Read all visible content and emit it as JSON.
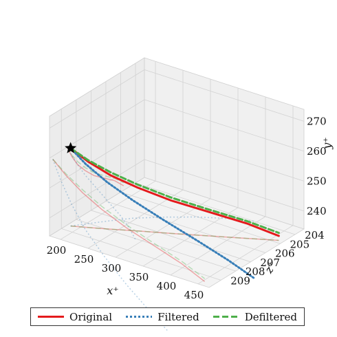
{
  "chart_data": {
    "type": "line",
    "projection": "3d",
    "axes": {
      "x": {
        "label": "x⁺",
        "ticks": [
          "200",
          "250",
          "300",
          "350",
          "400",
          "450"
        ],
        "range": [
          180,
          470
        ]
      },
      "z": {
        "label": "z⁺",
        "ticks": [
          "204",
          "205",
          "206",
          "207",
          "208",
          "209"
        ],
        "range": [
          203.4,
          209.8
        ]
      },
      "y": {
        "label": "y⁺",
        "ticks": [
          "240",
          "250",
          "260",
          "270"
        ],
        "range": [
          234,
          274
        ]
      }
    },
    "grid": true,
    "legend_position": "bottom",
    "start_marker": {
      "symbol": "star",
      "x": 186,
      "z": 208.6,
      "y": 260
    },
    "series": [
      {
        "name": "Original",
        "color": "#e41a1c",
        "style": "solid",
        "points": [
          [
            186,
            208.6,
            260
          ],
          [
            210,
            208.3,
            256
          ],
          [
            240,
            207.9,
            252
          ],
          [
            275,
            207.4,
            248.5
          ],
          [
            320,
            206.8,
            245
          ],
          [
            370,
            206.1,
            242
          ],
          [
            420,
            205.4,
            239
          ],
          [
            462,
            204.8,
            235.5
          ]
        ]
      },
      {
        "name": "Filtered",
        "color": "#377eb8",
        "style": "dotted",
        "points": [
          [
            186,
            208.6,
            260
          ],
          [
            200,
            208.1,
            254
          ],
          [
            220,
            207.4,
            247
          ],
          [
            245,
            206.6,
            240
          ],
          [
            280,
            205.8,
            233
          ],
          [
            320,
            205.0,
            226
          ],
          [
            360,
            204.4,
            220
          ],
          [
            395,
            204.0,
            215
          ]
        ]
      },
      {
        "name": "Defiltered",
        "color": "#4daf4a",
        "style": "dashed",
        "points": [
          [
            186,
            208.6,
            260
          ],
          [
            210,
            208.3,
            256.5
          ],
          [
            240,
            207.9,
            253
          ],
          [
            275,
            207.4,
            249.5
          ],
          [
            320,
            206.8,
            246
          ],
          [
            370,
            206.1,
            242.8
          ],
          [
            420,
            205.4,
            239.8
          ],
          [
            462,
            204.8,
            236.5
          ]
        ]
      }
    ]
  },
  "legend": {
    "items": [
      {
        "label": "Original",
        "color": "#e41a1c"
      },
      {
        "label": "Filtered",
        "color": "#377eb8"
      },
      {
        "label": "Defiltered",
        "color": "#4daf4a"
      }
    ]
  }
}
